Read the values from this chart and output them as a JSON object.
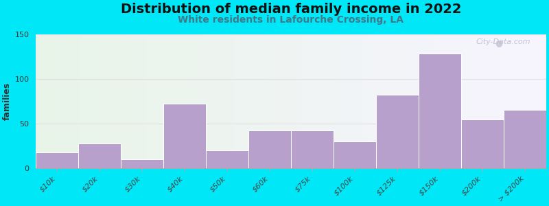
{
  "title": "Distribution of median family income in 2022",
  "subtitle": "White residents in Lafourche Crossing, LA",
  "ylabel": "families",
  "categories": [
    "$10k",
    "$20k",
    "$30k",
    "$40k",
    "$50k",
    "$60k",
    "$75k",
    "$100k",
    "$125k",
    "$150k",
    "$200k",
    "> $200k"
  ],
  "values": [
    18,
    28,
    10,
    72,
    20,
    42,
    42,
    30,
    82,
    128,
    55,
    65
  ],
  "bar_color": "#b8a0cc",
  "bar_edge_color": "#ffffff",
  "background_outer": "#00e8f8",
  "plot_bg_green": "#e8f5e8",
  "plot_bg_white": "#f8f8ff",
  "grid_color": "#e0e0e0",
  "title_fontsize": 14,
  "subtitle_fontsize": 10,
  "ylabel_fontsize": 9,
  "tick_fontsize": 8,
  "ylim": [
    0,
    150
  ],
  "yticks": [
    0,
    50,
    100,
    150
  ],
  "watermark": "City-Data.com"
}
